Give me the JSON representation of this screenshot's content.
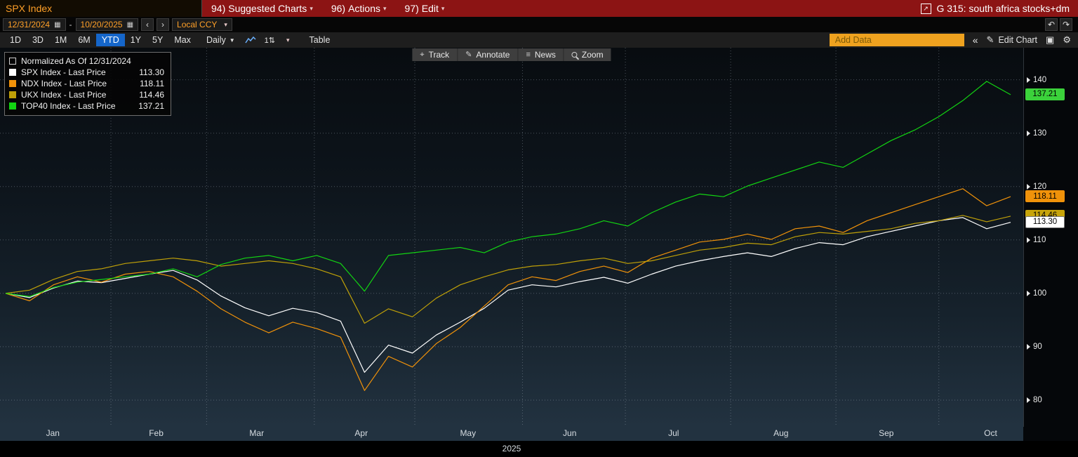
{
  "titlebar": {
    "security": "SPX Index",
    "menus": [
      {
        "num": "94)",
        "label": "Suggested Charts"
      },
      {
        "num": "96)",
        "label": "Actions"
      },
      {
        "num": "97)",
        "label": "Edit"
      }
    ],
    "right_label": "G 315: south africa stocks+dm"
  },
  "datebar": {
    "start_date": "12/31/2024",
    "end_date": "10/20/2025",
    "separator": "-",
    "currency": "Local CCY"
  },
  "toolbar": {
    "periods": [
      "1D",
      "3D",
      "1M",
      "6M",
      "YTD",
      "1Y",
      "5Y",
      "Max"
    ],
    "active_period": "YTD",
    "frequency": "Daily",
    "table_label": "Table",
    "add_data_placeholder": "Add Data",
    "edit_chart_label": "Edit Chart"
  },
  "chart_tools": [
    {
      "label": "Track"
    },
    {
      "label": "Annotate"
    },
    {
      "label": "News"
    },
    {
      "label": "Zoom"
    }
  ],
  "legend": {
    "title": "Normalized As Of 12/31/2024",
    "items": [
      {
        "label": "SPX Index - Last Price",
        "value": "113.30",
        "color": "#ffffff"
      },
      {
        "label": "NDX Index - Last Price",
        "value": "118.11",
        "color": "#f0920a"
      },
      {
        "label": "UKX Index - Last Price",
        "value": "114.46",
        "color": "#bfa008"
      },
      {
        "label": "TOP40 Index - Last Price",
        "value": "137.21",
        "color": "#12d412"
      }
    ]
  },
  "icons": {
    "chevron_down": "▾",
    "freq_arrow": "▼",
    "calendar": "▦",
    "prev": "‹",
    "next": "›",
    "undo": "↶",
    "redo": "↷",
    "collapse": "«",
    "pencil": "✎",
    "gear": "⚙",
    "grid": "▣",
    "launch": "↗",
    "track": "⌖",
    "annotate": "✎",
    "news": "≡",
    "updown": "1⇅"
  },
  "chart_data": {
    "type": "line",
    "title": "Normalized As Of 12/31/2024",
    "x_unit": "weeks since 12/31/2024",
    "x_range": [
      0,
      42
    ],
    "ylim": [
      75,
      146
    ],
    "y_ticks": [
      80,
      90,
      100,
      110,
      120,
      130,
      140
    ],
    "grid": true,
    "legend_position": "top-left",
    "year_label": "2025",
    "months": [
      {
        "label": "Jan",
        "x": 2.1
      },
      {
        "label": "Feb",
        "x": 6.4
      },
      {
        "label": "Mar",
        "x": 10.6
      },
      {
        "label": "Apr",
        "x": 15.0
      },
      {
        "label": "May",
        "x": 19.4
      },
      {
        "label": "Jun",
        "x": 23.7
      },
      {
        "label": "Jul",
        "x": 28.1
      },
      {
        "label": "Aug",
        "x": 32.5
      },
      {
        "label": "Sep",
        "x": 36.9
      },
      {
        "label": "Oct",
        "x": 41.3
      }
    ],
    "month_gridlines": [
      4.4,
      8.4,
      12.9,
      17.1,
      21.6,
      25.9,
      30.3,
      34.7,
      39.0
    ],
    "series": [
      {
        "name": "SPX Index",
        "color": "#ffffff",
        "values": [
          100.0,
          99.2,
          101.0,
          102.3,
          102.0,
          102.8,
          103.6,
          104.3,
          102.5,
          99.5,
          97.3,
          95.8,
          97.2,
          96.4,
          94.8,
          85.2,
          90.3,
          88.8,
          92.2,
          94.6,
          97.2,
          100.6,
          101.6,
          101.2,
          102.2,
          103.0,
          101.9,
          103.6,
          105.1,
          106.1,
          106.9,
          107.6,
          106.9,
          108.4,
          109.5,
          109.1,
          110.6,
          111.6,
          112.6,
          113.6,
          114.2,
          112.1,
          113.3
        ]
      },
      {
        "name": "NDX Index",
        "color": "#f0920a",
        "values": [
          100.0,
          98.6,
          101.6,
          103.1,
          102.1,
          103.6,
          104.1,
          103.1,
          100.4,
          97.1,
          94.6,
          92.6,
          94.6,
          93.4,
          91.8,
          81.8,
          88.2,
          86.2,
          90.6,
          93.6,
          97.6,
          101.6,
          103.1,
          102.4,
          104.1,
          105.1,
          103.9,
          106.6,
          108.1,
          109.6,
          110.1,
          111.1,
          110.1,
          112.1,
          112.6,
          111.4,
          113.6,
          115.1,
          116.6,
          118.1,
          119.6,
          116.4,
          118.11
        ]
      },
      {
        "name": "UKX Index",
        "color": "#bfa008",
        "values": [
          100.0,
          100.6,
          102.6,
          104.1,
          104.6,
          105.6,
          106.1,
          106.6,
          106.1,
          105.1,
          105.6,
          106.1,
          105.6,
          104.6,
          103.1,
          94.4,
          97.1,
          95.6,
          99.1,
          101.6,
          103.1,
          104.4,
          105.1,
          105.4,
          106.1,
          106.6,
          105.6,
          106.1,
          107.1,
          108.1,
          108.6,
          109.4,
          109.1,
          110.6,
          111.4,
          111.1,
          111.6,
          112.1,
          113.1,
          113.6,
          114.6,
          113.4,
          114.46
        ]
      },
      {
        "name": "TOP40 Index",
        "color": "#12d412",
        "values": [
          100.0,
          99.4,
          101.1,
          102.1,
          102.6,
          103.1,
          103.6,
          104.6,
          103.1,
          105.4,
          106.6,
          107.1,
          106.1,
          107.1,
          105.6,
          100.4,
          107.1,
          107.6,
          108.1,
          108.6,
          107.6,
          109.6,
          110.6,
          111.1,
          112.1,
          113.6,
          112.6,
          115.1,
          117.1,
          118.6,
          118.1,
          120.1,
          121.6,
          123.1,
          124.6,
          123.6,
          126.1,
          128.6,
          130.6,
          133.1,
          136.1,
          139.7,
          137.21
        ]
      }
    ],
    "last_price_badges": [
      {
        "label": "137.21",
        "value": 137.21,
        "bg": "#3bd23b",
        "fg": "#000000"
      },
      {
        "label": "118.11",
        "value": 118.11,
        "bg": "#f0920a",
        "fg": "#000000"
      },
      {
        "label": "114.46",
        "value": 114.46,
        "bg": "#c7a40a",
        "fg": "#000000"
      },
      {
        "label": "113.30",
        "value": 113.3,
        "bg": "#ffffff",
        "fg": "#000000",
        "border": "#777777"
      }
    ]
  }
}
